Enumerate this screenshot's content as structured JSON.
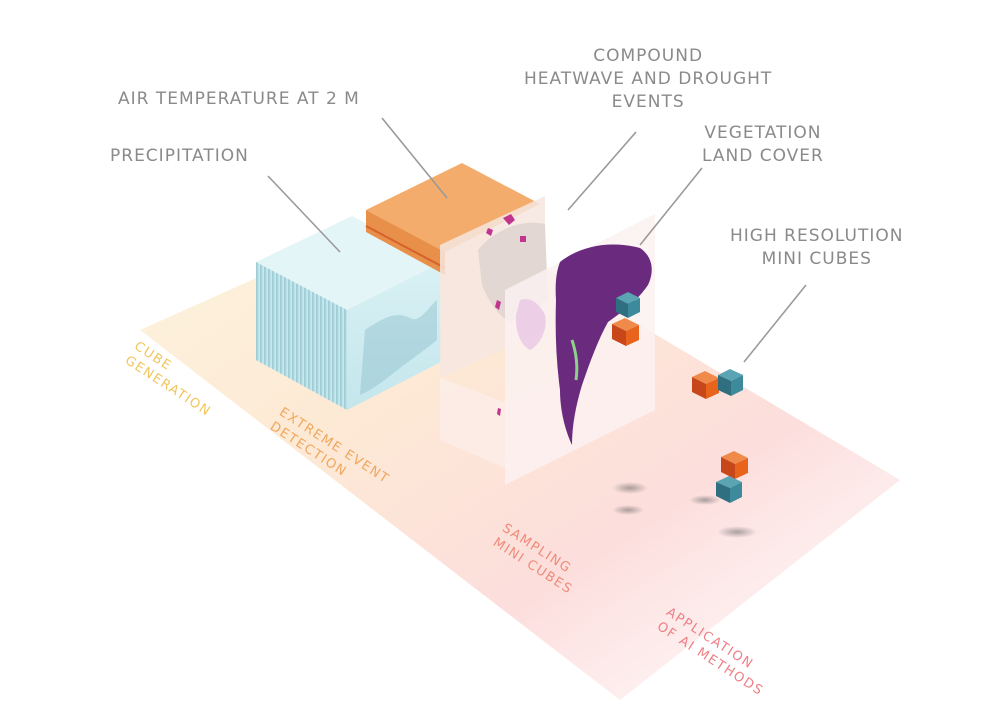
{
  "layer_labels": {
    "air_temperature": [
      "AIR TEMPERATURE AT 2 M"
    ],
    "precipitation": [
      "PRECIPITATION"
    ],
    "compound_events": [
      "COMPOUND",
      "HEATWAVE  AND DROUGHT",
      "EVENTS"
    ],
    "vegetation": [
      "VEGETATION",
      "LAND COVER"
    ],
    "mini_cubes": [
      "HIGH RESOLUTION",
      "MINI CUBES"
    ]
  },
  "stages": [
    {
      "lines": [
        "CUBE",
        "GENERATION"
      ],
      "color": "#f2c55c"
    },
    {
      "lines": [
        "EXTREME EVENT",
        "DETECTION"
      ],
      "color": "#f0a65c"
    },
    {
      "lines": [
        "SAMPLING",
        "MINI CUBES"
      ],
      "color": "#f08a78"
    },
    {
      "lines": [
        "APPLICATION",
        "OF AI METHODS"
      ],
      "color": "#ef7e86"
    }
  ],
  "colors": {
    "label_text": "#8a8a8a",
    "leader_line": "#9a9a9a",
    "precipitation_cube": "#cfeef2",
    "temperature_cube": "#f2a766",
    "heatwave_drought": "#c2358f",
    "vegetation": "#6a2a7e",
    "mini_cube_orange": "#e8631c",
    "mini_cube_teal": "#2f7e8f"
  }
}
